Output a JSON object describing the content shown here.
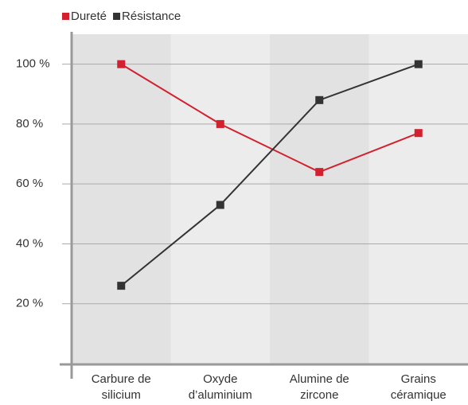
{
  "chart_data": {
    "type": "line",
    "categories": [
      "Carbure de silicium",
      "Oxyde d’aluminium",
      "Alumine de zircone",
      "Grains céramique"
    ],
    "series": [
      {
        "name": "Dureté",
        "color": "#d2202f",
        "values": [
          100,
          80,
          64,
          77
        ]
      },
      {
        "name": "Résistance",
        "color": "#333333",
        "values": [
          26,
          53,
          88,
          100
        ]
      }
    ],
    "ylim": [
      0,
      110
    ],
    "yticks": [
      {
        "value": 20,
        "label": "20 %"
      },
      {
        "value": 40,
        "label": "40 %"
      },
      {
        "value": 60,
        "label": "60 %"
      },
      {
        "value": 80,
        "label": "80 %"
      },
      {
        "value": 100,
        "label": "100 %"
      }
    ],
    "grid": true,
    "legend": "top-left"
  }
}
